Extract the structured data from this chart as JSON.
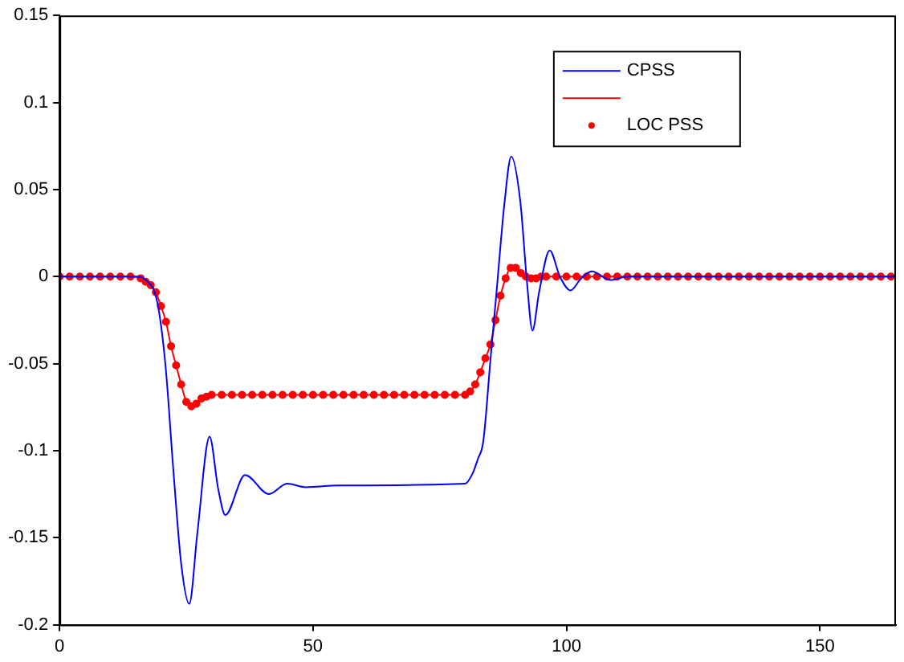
{
  "chart_data": {
    "type": "line",
    "xlim": [
      0,
      165
    ],
    "xticks": [
      0,
      50,
      100,
      150
    ],
    "ylim": [
      -0.2,
      0.15
    ],
    "yticks": [
      -0.2,
      -0.15,
      -0.1,
      -0.05,
      0,
      0.05,
      0.1,
      0.15
    ],
    "grid": false,
    "legend": "top right",
    "series": [
      {
        "name": "CPSS",
        "color": "#0000ff",
        "marker": "none",
        "x": [
          0,
          15,
          17,
          19.3,
          20.9,
          22.5,
          24,
          25.6,
          27.2,
          29.6,
          31.3,
          32.7,
          36.6,
          41.3,
          44.9,
          48.6,
          55,
          80,
          81.5,
          82.5,
          83.6,
          85,
          86.2,
          87.8,
          89.1,
          90.9,
          92.2,
          93.3,
          94.6,
          96.7,
          98.7,
          100.8,
          102.9,
          105,
          108.7,
          112,
          165
        ],
        "values": [
          0,
          0,
          -0.002,
          -0.015,
          -0.051,
          -0.113,
          -0.165,
          -0.188,
          -0.147,
          -0.092,
          -0.122,
          -0.137,
          -0.114,
          -0.125,
          -0.119,
          -0.121,
          -0.12,
          -0.119,
          -0.113,
          -0.105,
          -0.0945,
          -0.048,
          -0.009,
          0.043,
          0.069,
          0.043,
          -0.003,
          -0.031,
          -0.009,
          0.015,
          0,
          -0.008,
          -0.001,
          0.003,
          -0.002,
          0,
          0
        ]
      },
      {
        "color": "#ff0000",
        "marker": "none",
        "x": [
          0,
          2,
          4,
          6,
          8,
          10,
          12,
          14,
          16,
          17,
          18,
          19,
          20,
          21,
          22,
          23,
          24,
          25,
          26,
          27,
          28,
          29,
          30,
          32,
          34,
          36,
          38,
          40,
          42,
          44,
          46,
          48,
          50,
          52,
          54,
          56,
          58,
          60,
          62,
          64,
          66,
          68,
          70,
          72,
          74,
          76,
          78,
          80,
          81,
          82,
          83,
          84,
          85,
          86,
          87,
          88,
          89,
          90,
          91,
          92,
          93,
          94,
          95,
          96,
          98,
          100,
          102,
          104,
          106,
          108,
          110,
          112,
          114,
          116,
          118,
          120,
          122,
          124,
          126,
          128,
          130,
          132,
          134,
          136,
          138,
          140,
          142,
          144,
          146,
          148,
          150,
          152,
          154,
          156,
          158,
          160,
          162,
          164
        ],
        "values": [
          0,
          0,
          0,
          0,
          0,
          0,
          0,
          0,
          -0.001,
          -0.003,
          -0.005,
          -0.009,
          -0.017,
          -0.026,
          -0.04,
          -0.051,
          -0.062,
          -0.072,
          -0.0745,
          -0.073,
          -0.07,
          -0.069,
          -0.068,
          -0.068,
          -0.068,
          -0.068,
          -0.068,
          -0.068,
          -0.068,
          -0.068,
          -0.068,
          -0.068,
          -0.068,
          -0.068,
          -0.068,
          -0.068,
          -0.068,
          -0.068,
          -0.068,
          -0.068,
          -0.068,
          -0.068,
          -0.068,
          -0.068,
          -0.068,
          -0.068,
          -0.068,
          -0.068,
          -0.066,
          -0.062,
          -0.055,
          -0.047,
          -0.039,
          -0.025,
          -0.011,
          -0.001,
          0.005,
          0.005,
          0.002,
          0,
          -0.001,
          -0.001,
          0,
          0,
          0,
          0,
          0,
          0,
          0,
          0,
          0,
          0,
          0,
          0,
          0,
          0,
          0,
          0,
          0,
          0,
          0,
          0,
          0,
          0,
          0,
          0,
          0,
          0,
          0,
          0,
          0,
          0,
          0,
          0,
          0,
          0,
          0,
          0
        ]
      },
      {
        "name": "LOC PSS",
        "type": "scatter",
        "color": "#ff0000",
        "marker": "circle",
        "x": [
          0,
          2,
          4,
          6,
          8,
          10,
          12,
          14,
          16,
          17,
          18,
          19,
          20,
          21,
          22,
          23,
          24,
          25,
          26,
          27,
          28,
          29,
          30,
          32,
          34,
          36,
          38,
          40,
          42,
          44,
          46,
          48,
          50,
          52,
          54,
          56,
          58,
          60,
          62,
          64,
          66,
          68,
          70,
          72,
          74,
          76,
          78,
          80,
          81,
          82,
          83,
          84,
          85,
          86,
          87,
          88,
          89,
          90,
          91,
          92,
          93,
          94,
          95,
          96,
          98,
          100,
          102,
          104,
          106,
          108,
          110,
          112,
          114,
          116,
          118,
          120,
          122,
          124,
          126,
          128,
          130,
          132,
          134,
          136,
          138,
          140,
          142,
          144,
          146,
          148,
          150,
          152,
          154,
          156,
          158,
          160,
          162,
          164
        ],
        "values": [
          0,
          0,
          0,
          0,
          0,
          0,
          0,
          0,
          -0.001,
          -0.003,
          -0.005,
          -0.009,
          -0.017,
          -0.026,
          -0.04,
          -0.051,
          -0.062,
          -0.072,
          -0.0745,
          -0.073,
          -0.07,
          -0.069,
          -0.068,
          -0.068,
          -0.068,
          -0.068,
          -0.068,
          -0.068,
          -0.068,
          -0.068,
          -0.068,
          -0.068,
          -0.068,
          -0.068,
          -0.068,
          -0.068,
          -0.068,
          -0.068,
          -0.068,
          -0.068,
          -0.068,
          -0.068,
          -0.068,
          -0.068,
          -0.068,
          -0.068,
          -0.068,
          -0.068,
          -0.066,
          -0.062,
          -0.055,
          -0.047,
          -0.039,
          -0.025,
          -0.011,
          -0.001,
          0.005,
          0.005,
          0.002,
          0,
          -0.001,
          -0.001,
          0,
          0,
          0,
          0,
          0,
          0,
          0,
          0,
          0,
          0,
          0,
          0,
          0,
          0,
          0,
          0,
          0,
          0,
          0,
          0,
          0,
          0,
          0,
          0,
          0,
          0,
          0,
          0,
          0,
          0,
          0,
          0,
          0,
          0,
          0,
          0
        ]
      }
    ]
  }
}
